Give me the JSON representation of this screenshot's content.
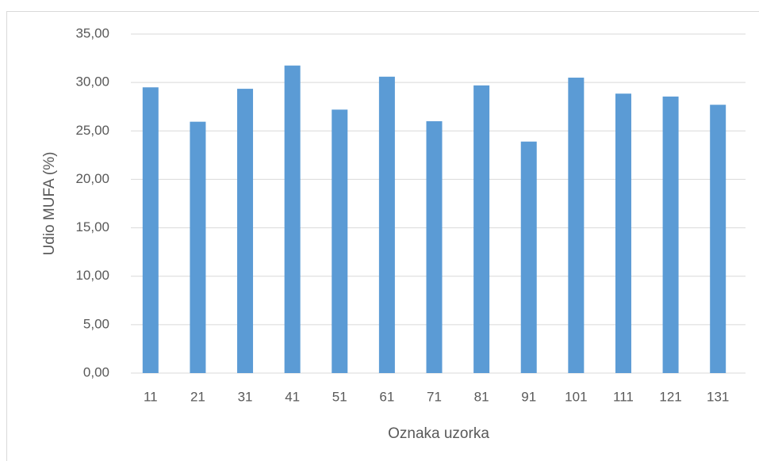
{
  "chart_data": {
    "type": "bar",
    "x_label": "Oznaka uzorka",
    "y_label": "Udio MUFA (%)",
    "categories": [
      "11",
      "21",
      "31",
      "41",
      "51",
      "61",
      "71",
      "81",
      "91",
      "101",
      "111",
      "121",
      "131"
    ],
    "values": [
      29.5,
      25.95,
      29.35,
      31.75,
      27.2,
      30.6,
      26.0,
      29.7,
      23.9,
      30.5,
      28.85,
      28.55,
      27.7
    ],
    "color": "#5b9bd5",
    "ylim": [
      0,
      35
    ],
    "yticks": [
      {
        "value": 0,
        "label": "0,00"
      },
      {
        "value": 5,
        "label": "5,00"
      },
      {
        "value": 10,
        "label": "10,00"
      },
      {
        "value": 15,
        "label": "15,00"
      },
      {
        "value": 20,
        "label": "20,00"
      },
      {
        "value": 25,
        "label": "25,00"
      },
      {
        "value": 30,
        "label": "30,00"
      },
      {
        "value": 35,
        "label": "35,00"
      }
    ],
    "grid": true
  }
}
